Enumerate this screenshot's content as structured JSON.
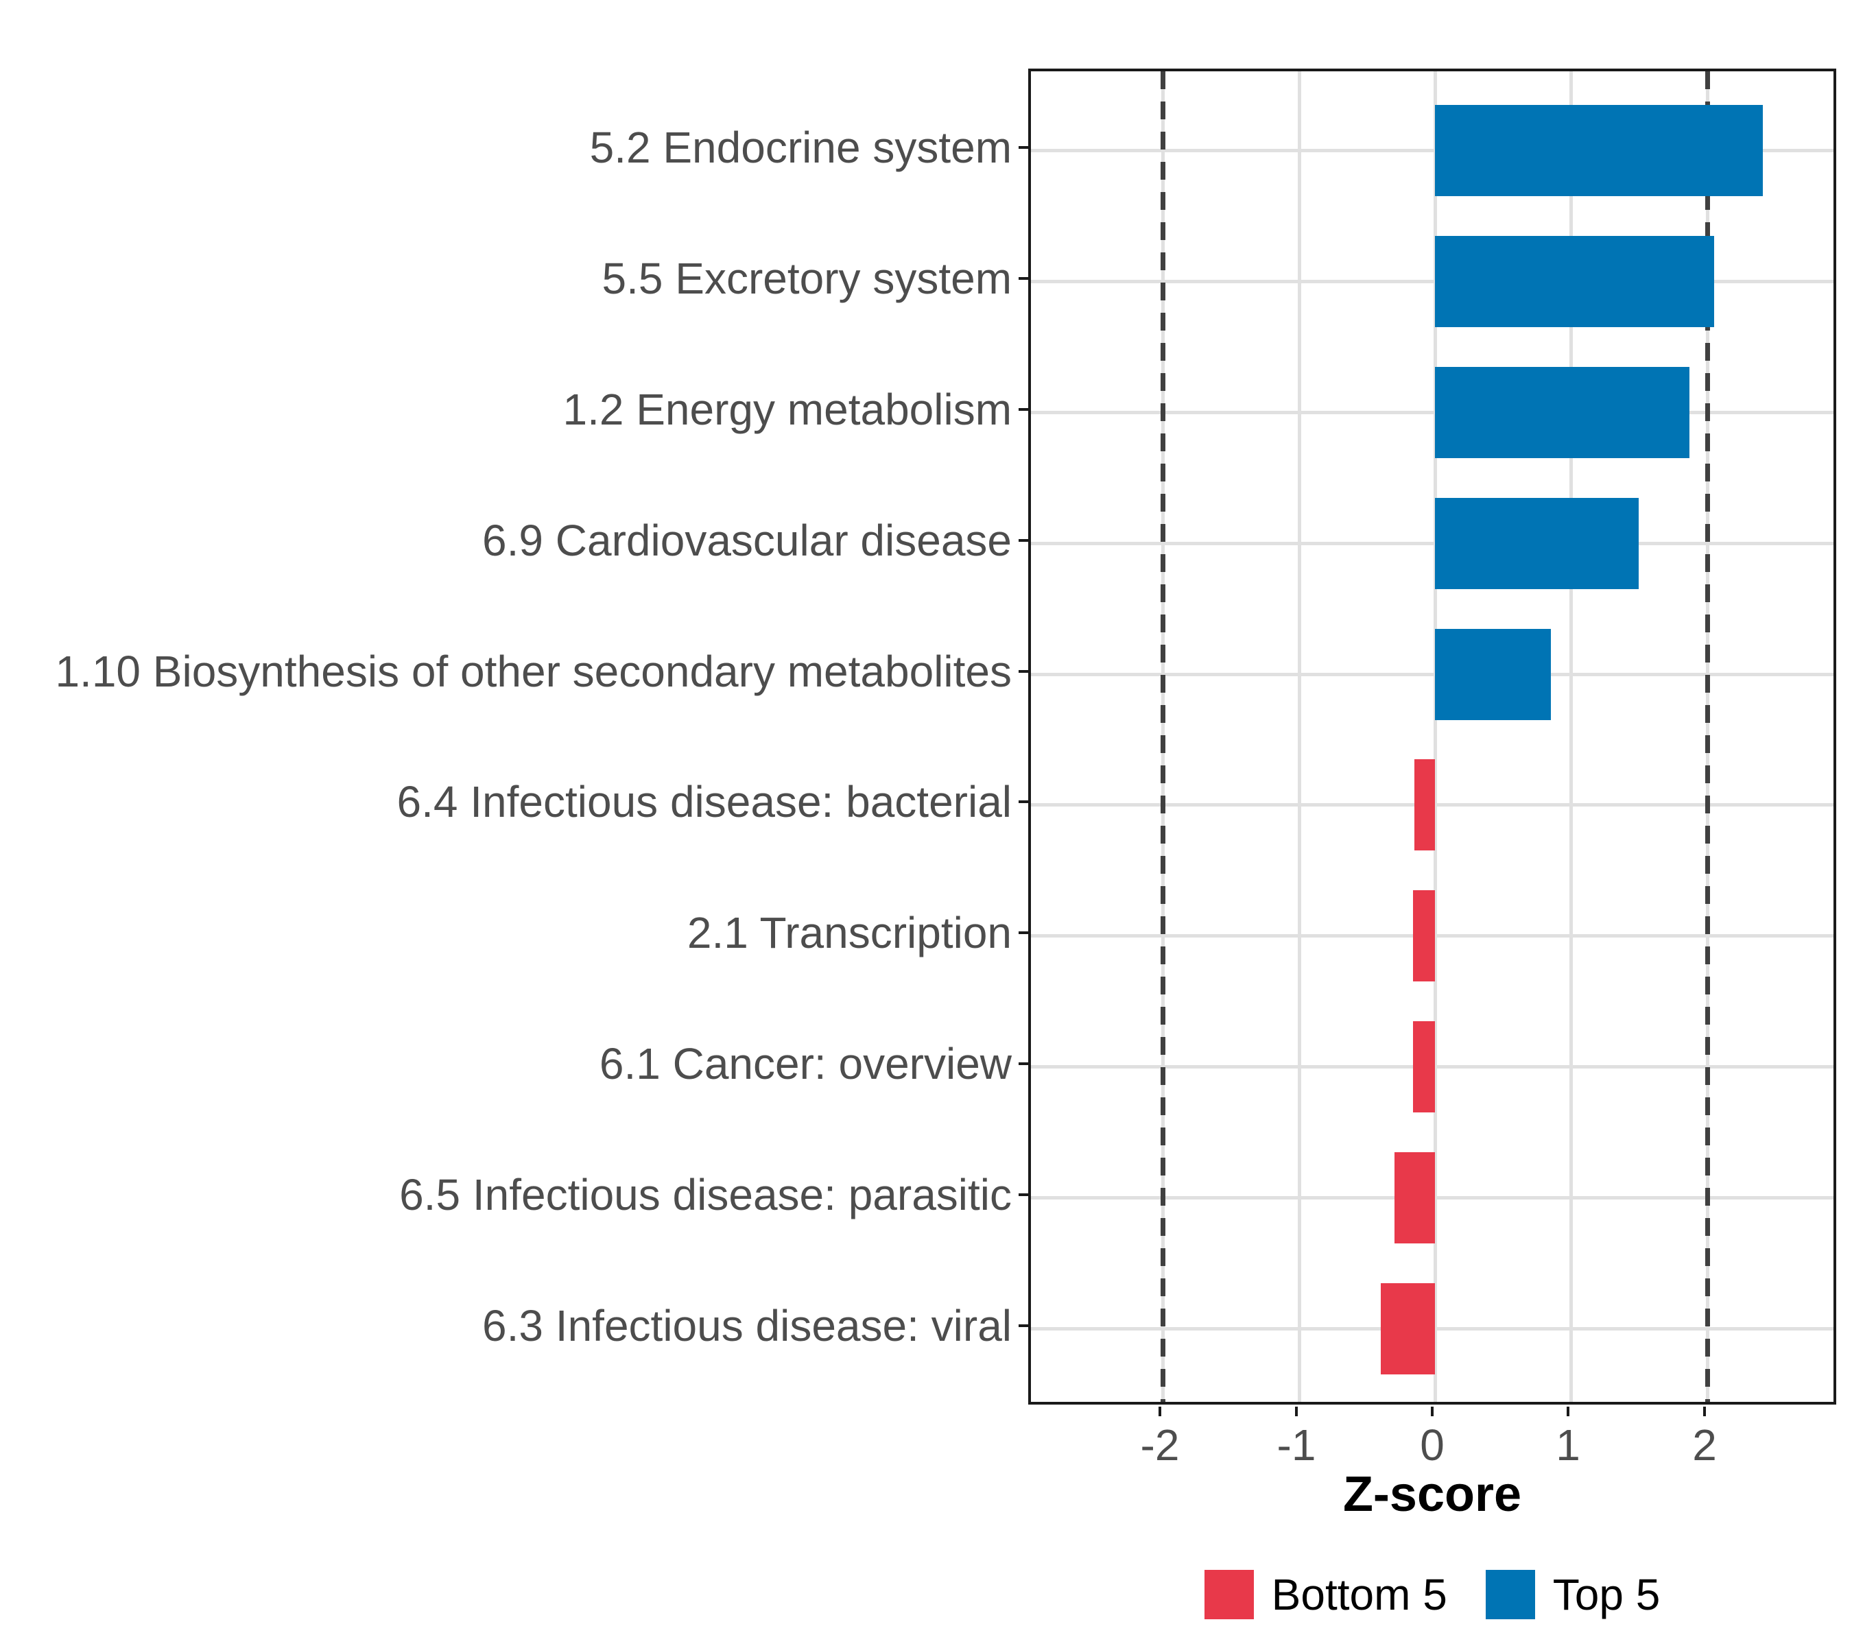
{
  "chart_data": {
    "type": "bar",
    "orientation": "horizontal",
    "title": "",
    "xlabel": "Z-score",
    "categories": [
      "5.2 Endocrine system",
      "5.5 Excretory system",
      "1.2 Energy metabolism",
      "6.9 Cardiovascular disease",
      "1.10 Biosynthesis of other secondary metabolites",
      "6.4 Infectious disease: bacterial",
      "2.1 Transcription",
      "6.1 Cancer: overview",
      "6.5 Infectious disease: parasitic",
      "6.3 Infectious disease: viral"
    ],
    "values": [
      2.41,
      2.05,
      1.87,
      1.5,
      0.85,
      -0.15,
      -0.16,
      -0.16,
      -0.3,
      -0.4
    ],
    "xlim": [
      -2.97,
      2.97
    ],
    "xticks": [
      -2,
      -1,
      0,
      1,
      2
    ],
    "xtick_labels": [
      "-2",
      "-1",
      "0",
      "1",
      "2"
    ],
    "reference_lines": [
      -2,
      2
    ],
    "grid": "major-x-and-y",
    "colors": {
      "positive_bar": "#0074b4",
      "negative_bar": "#e8394a",
      "gridline": "#e0e0e0",
      "reference_line": "#404040",
      "axis_text": "#4d4d4d",
      "panel_border": "#1a1a1a"
    },
    "legend": {
      "position": "bottom",
      "items": [
        {
          "label": "Bottom 5",
          "color": "#e8394a"
        },
        {
          "label": "Top 5",
          "color": "#0074b4"
        }
      ]
    }
  }
}
